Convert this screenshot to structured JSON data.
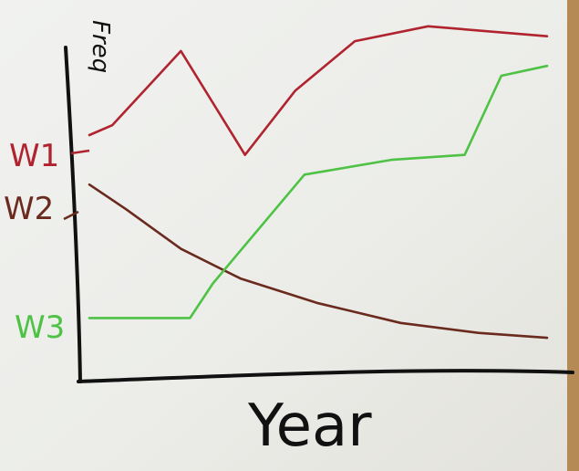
{
  "chart_data": {
    "type": "line",
    "xlabel": "Year",
    "ylabel": "Freq",
    "grid": false,
    "legend": "none",
    "series": [
      {
        "name": "W1",
        "color": "#b0242f",
        "x": [
          0,
          0.05,
          0.2,
          0.34,
          0.45,
          0.58,
          0.74,
          1.0
        ],
        "y": [
          0.78,
          0.8,
          0.95,
          0.74,
          0.87,
          0.97,
          1.0,
          0.98
        ]
      },
      {
        "name": "W2",
        "color": "#6b2a1e",
        "x": [
          0,
          0.08,
          0.2,
          0.33,
          0.5,
          0.68,
          0.85,
          1.0
        ],
        "y": [
          0.68,
          0.63,
          0.55,
          0.49,
          0.44,
          0.4,
          0.38,
          0.37
        ]
      },
      {
        "name": "W3",
        "color": "#4ec244",
        "x": [
          0,
          0.22,
          0.27,
          0.47,
          0.66,
          0.82,
          0.9,
          1.0
        ],
        "y": [
          0.41,
          0.41,
          0.48,
          0.7,
          0.73,
          0.74,
          0.9,
          0.92
        ]
      }
    ],
    "xlim": [
      0,
      1
    ],
    "ylim": [
      0.3,
      1.02
    ]
  }
}
